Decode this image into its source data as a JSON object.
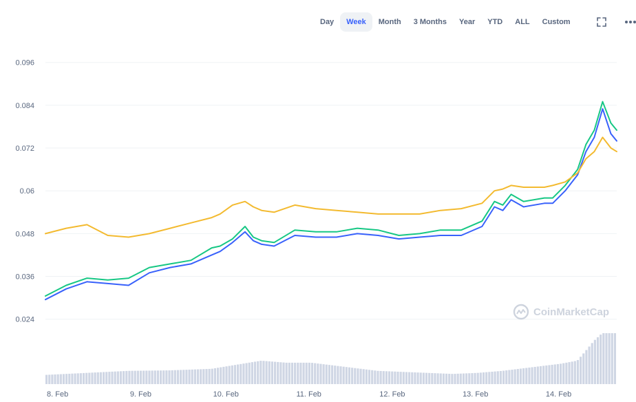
{
  "toolbar": {
    "ranges": [
      "Day",
      "Week",
      "Month",
      "3 Months",
      "Year",
      "YTD",
      "ALL",
      "Custom"
    ],
    "active": "Week",
    "icons": [
      "fullscreen-icon",
      "more-icon"
    ]
  },
  "watermark": {
    "text": "CoinMarketCap",
    "icon": "coinmarketcap-logo-icon"
  },
  "colors": {
    "grid": "#eff2f5",
    "series": [
      "#16c784",
      "#3861fb",
      "#f3ba2f"
    ],
    "volume": "#cfd6e4",
    "accent": "#3861fb"
  },
  "chart_data": {
    "type": "line",
    "grid": true,
    "xlim": [
      8.0,
      14.87
    ],
    "ylim": [
      0.0195,
      0.1
    ],
    "x_ticks": [
      8,
      9,
      10,
      11,
      12,
      13,
      14
    ],
    "x_tick_labels": [
      "8. Feb",
      "9. Feb",
      "10. Feb",
      "11. Feb",
      "12. Feb",
      "13. Feb",
      "14. Feb"
    ],
    "y_ticks": [
      0.024,
      0.036,
      0.048,
      0.06,
      0.072,
      0.084,
      0.096
    ],
    "y_tick_labels": [
      "0.024",
      "0.036",
      "0.048",
      "0.06",
      "0.072",
      "0.084",
      "0.096"
    ],
    "x": [
      8.0,
      8.25,
      8.5,
      8.75,
      9.0,
      9.25,
      9.5,
      9.75,
      10.0,
      10.1,
      10.25,
      10.4,
      10.5,
      10.6,
      10.75,
      11.0,
      11.25,
      11.5,
      11.75,
      12.0,
      12.25,
      12.5,
      12.75,
      13.0,
      13.25,
      13.4,
      13.5,
      13.6,
      13.75,
      14.0,
      14.1,
      14.25,
      14.4,
      14.5,
      14.6,
      14.7,
      14.8,
      14.87
    ],
    "series": [
      {
        "values": [
          0.0305,
          0.0335,
          0.0355,
          0.035,
          0.0355,
          0.0385,
          0.0395,
          0.0405,
          0.044,
          0.0445,
          0.0465,
          0.05,
          0.047,
          0.046,
          0.0455,
          0.049,
          0.0485,
          0.0485,
          0.0495,
          0.049,
          0.0475,
          0.048,
          0.049,
          0.049,
          0.0515,
          0.057,
          0.056,
          0.059,
          0.057,
          0.058,
          0.058,
          0.0615,
          0.066,
          0.073,
          0.077,
          0.085,
          0.079,
          0.077
        ]
      },
      {
        "values": [
          0.0295,
          0.0325,
          0.0345,
          0.034,
          0.0335,
          0.037,
          0.0385,
          0.0395,
          0.042,
          0.043,
          0.0455,
          0.0485,
          0.046,
          0.045,
          0.0445,
          0.0475,
          0.047,
          0.047,
          0.048,
          0.0475,
          0.0465,
          0.047,
          0.0475,
          0.0475,
          0.05,
          0.0555,
          0.0545,
          0.0575,
          0.0555,
          0.0565,
          0.0565,
          0.06,
          0.0645,
          0.071,
          0.075,
          0.083,
          0.076,
          0.074
        ]
      },
      {
        "values": [
          0.048,
          0.0495,
          0.0505,
          0.0475,
          0.047,
          0.048,
          0.0495,
          0.051,
          0.0525,
          0.0535,
          0.056,
          0.057,
          0.0555,
          0.0545,
          0.054,
          0.056,
          0.055,
          0.0545,
          0.054,
          0.0535,
          0.0535,
          0.0535,
          0.0545,
          0.055,
          0.0565,
          0.06,
          0.0605,
          0.0615,
          0.061,
          0.061,
          0.0615,
          0.0625,
          0.065,
          0.069,
          0.071,
          0.075,
          0.072,
          0.071
        ]
      }
    ],
    "volume": {
      "x": [
        8.0,
        8.5,
        9.0,
        9.5,
        10.0,
        10.3,
        10.6,
        10.9,
        11.2,
        11.5,
        11.8,
        12.0,
        12.3,
        12.6,
        12.9,
        13.2,
        13.5,
        13.8,
        14.0,
        14.2,
        14.4,
        14.5,
        14.6,
        14.7,
        14.87
      ],
      "values": [
        0.18,
        0.22,
        0.26,
        0.27,
        0.3,
        0.38,
        0.46,
        0.42,
        0.42,
        0.36,
        0.3,
        0.26,
        0.24,
        0.22,
        0.2,
        0.22,
        0.26,
        0.32,
        0.36,
        0.4,
        0.46,
        0.65,
        0.85,
        1.0,
        1.0
      ]
    }
  }
}
